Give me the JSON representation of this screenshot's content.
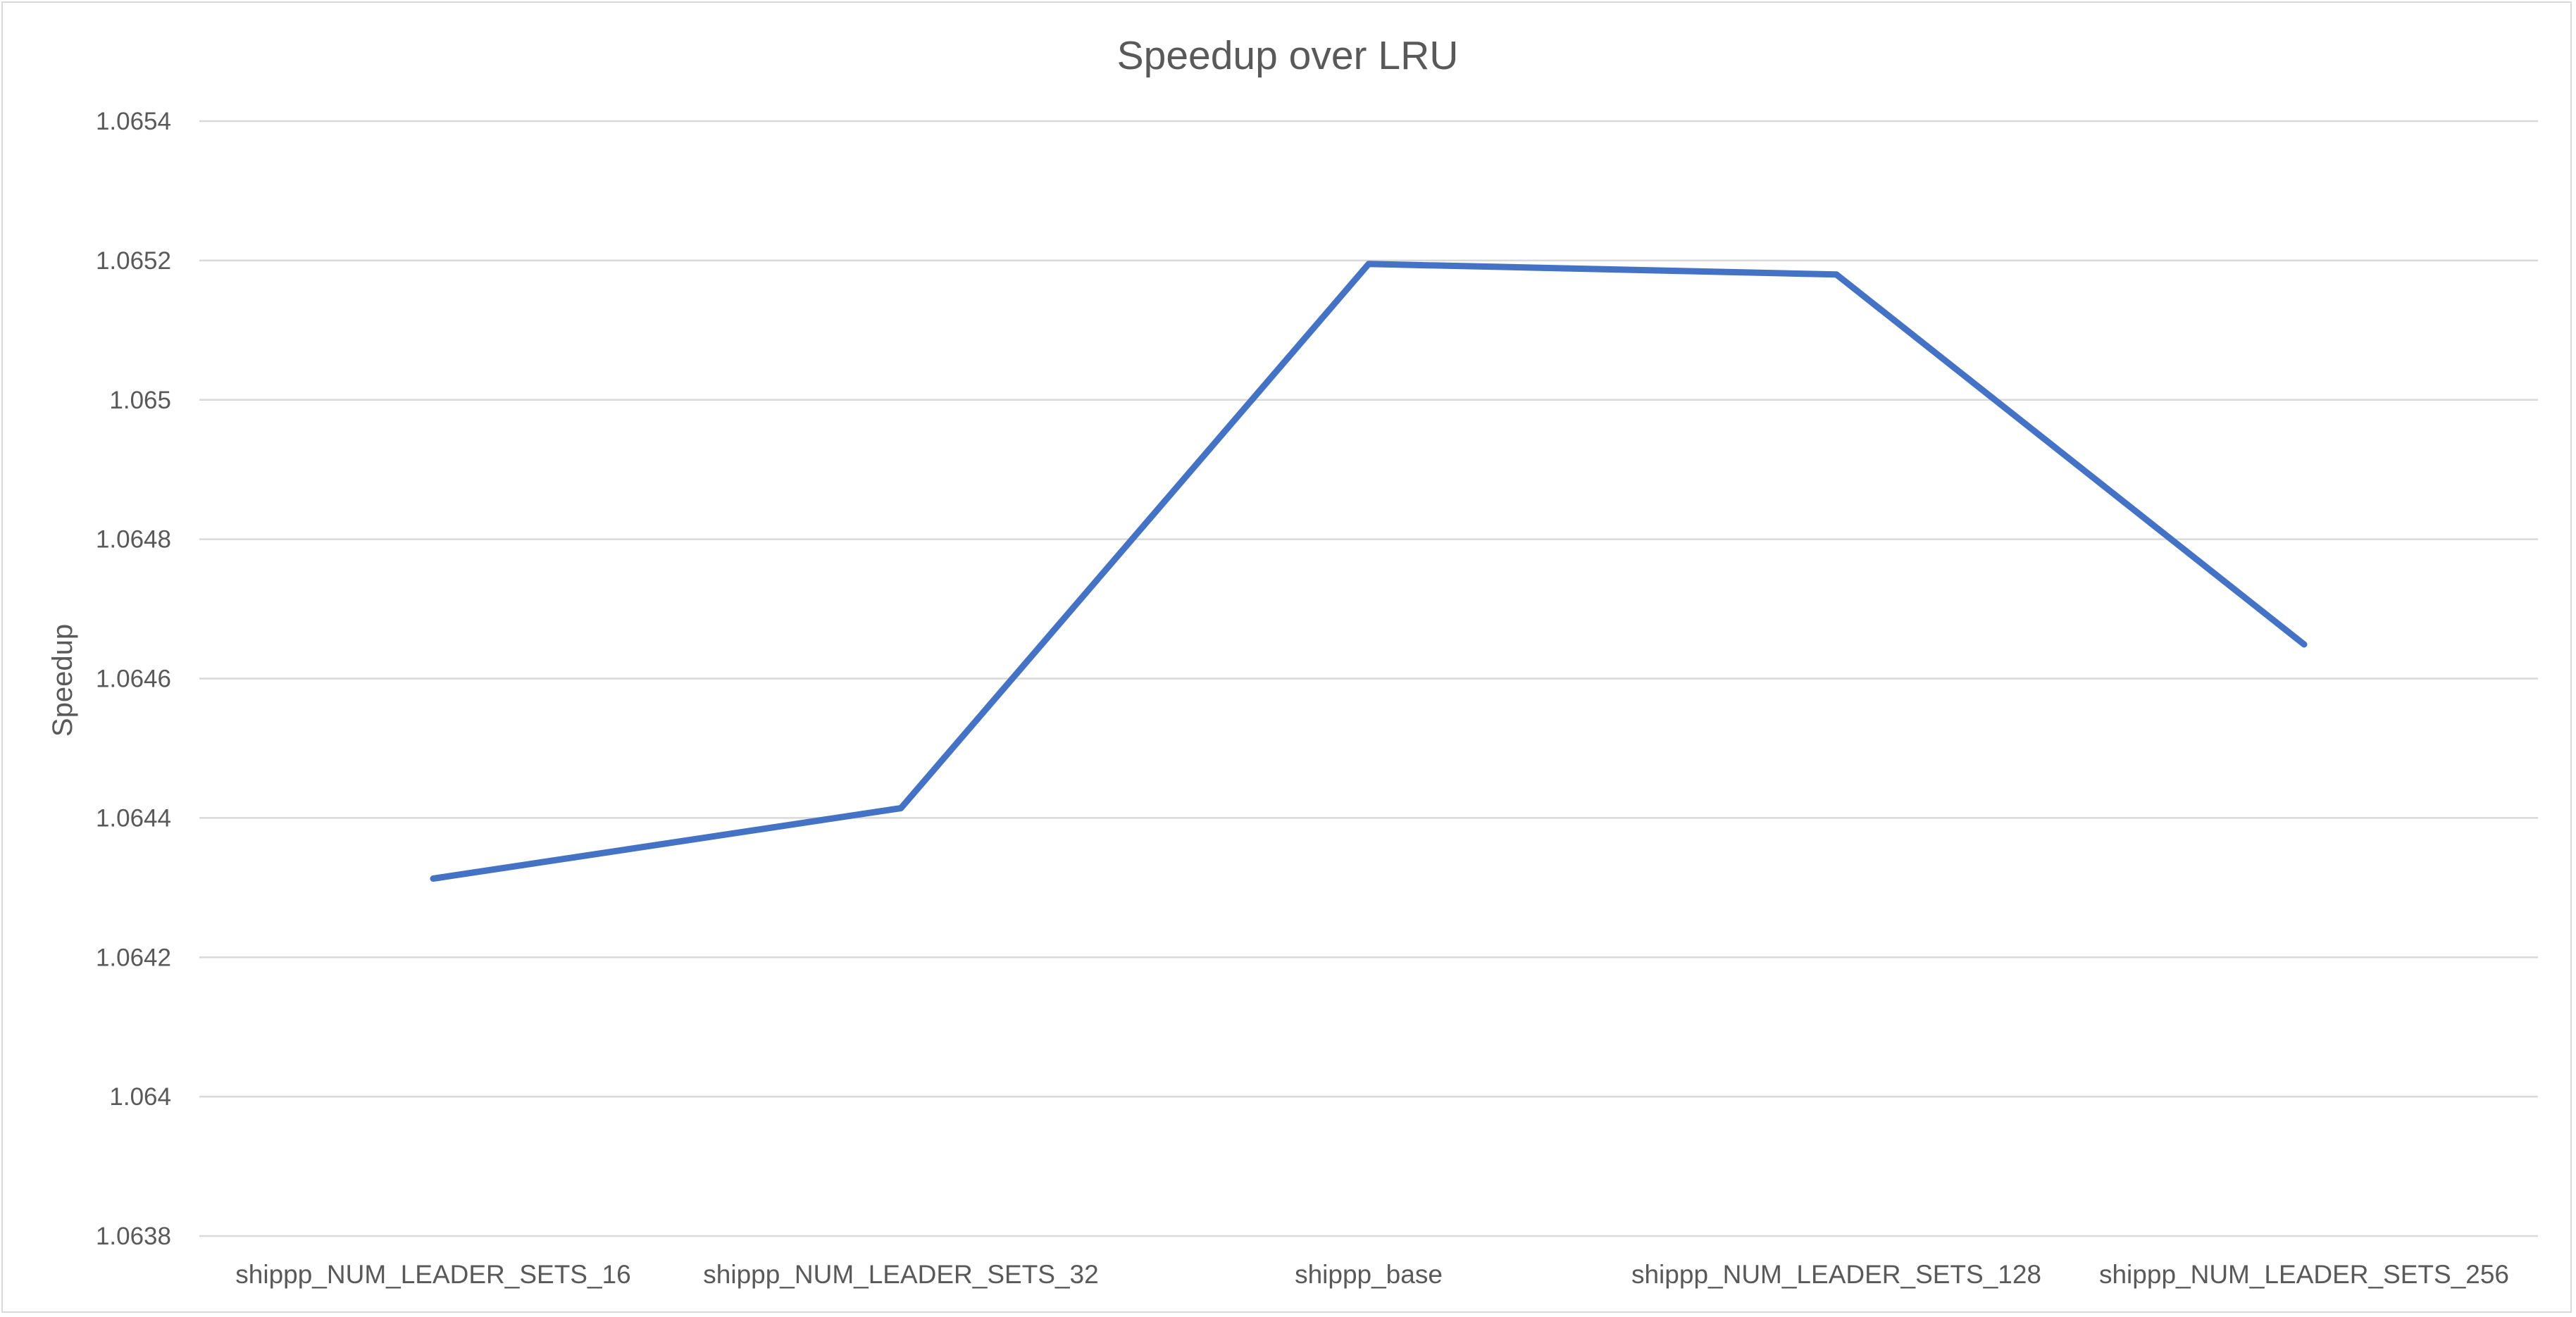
{
  "chart_data": {
    "type": "line",
    "title": "Speedup over LRU",
    "xlabel": "",
    "ylabel": "Speedup",
    "categories": [
      "shippp_NUM_LEADER_SETS_16",
      "shippp_NUM_LEADER_SETS_32",
      "shippp_base",
      "shippp_NUM_LEADER_SETS_128",
      "shippp_NUM_LEADER_SETS_256"
    ],
    "series": [
      {
        "values": [
          1.064313,
          1.064414,
          1.065195,
          1.06518,
          1.064649
        ],
        "color": "#4472c4"
      }
    ],
    "ylim": [
      1.0638,
      1.0654
    ],
    "yticks": [
      "1.0638",
      "1.064",
      "1.0642",
      "1.0644",
      "1.0646",
      "1.0648",
      "1.065",
      "1.0652",
      "1.0654"
    ],
    "grid": true,
    "legend": "none"
  }
}
